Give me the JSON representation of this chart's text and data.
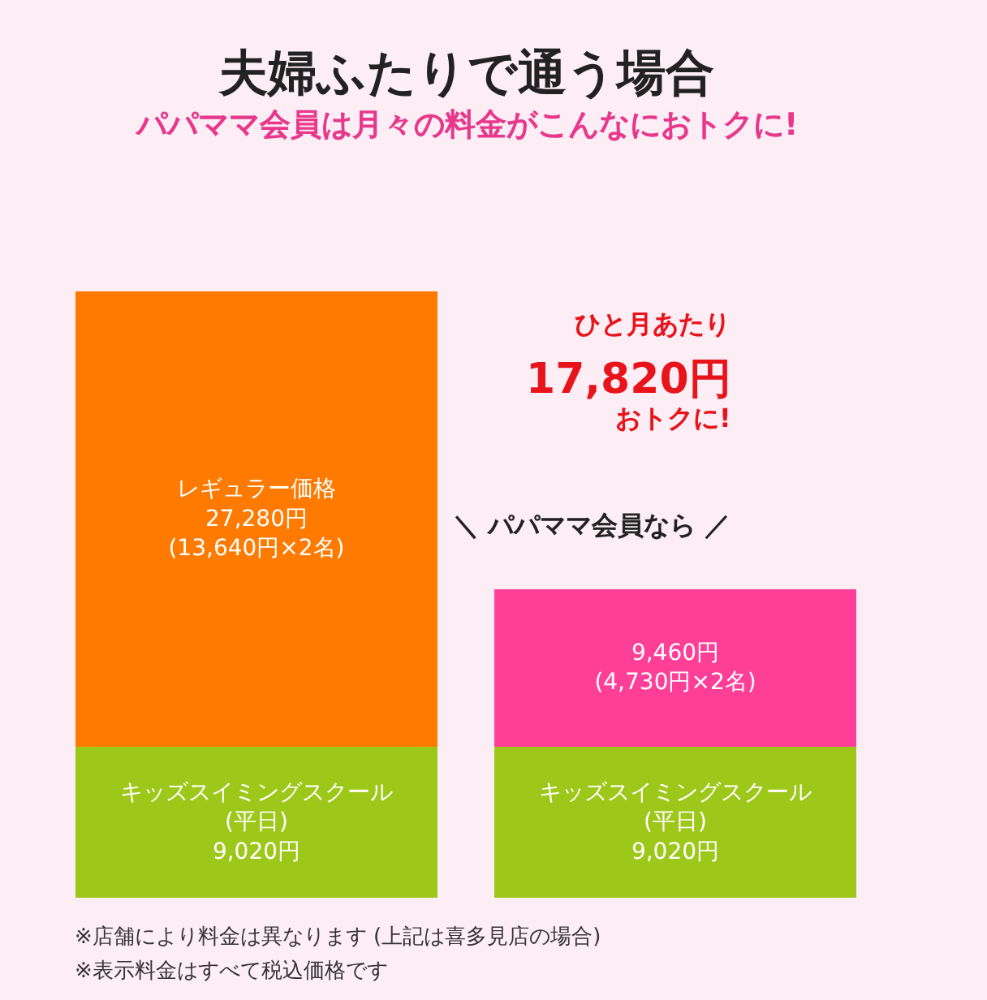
{
  "chart_data": {
    "type": "bar",
    "stacked": true,
    "title": "夫婦ふたりで通う場合",
    "subtitle": "パパママ会員は月々の料金がこんなにおトクに!",
    "categories": [
      null,
      null
    ],
    "series": [
      {
        "color": "#9dc81a",
        "values": [
          9020,
          9020
        ],
        "value_labels": [
          "キッズスイミングスクール\n(平日)\n9,020円",
          "キッズスイミングスクール\n(平日)\n9,020円"
        ]
      },
      {
        "colors": [
          "#ff7a00",
          "#ff3f97"
        ],
        "values": [
          27280,
          9460
        ],
        "value_labels": [
          "レギュラー価格\n27,280円\n(13,640円×2名)",
          "9,460円\n(4,730円×2名)"
        ]
      }
    ],
    "annotations": [
      "ひと月あたり",
      "17,820円",
      "おトクに!",
      "＼ パパママ会員なら ／",
      "※店舗により料金は異なります (上記は喜多見店の場合)",
      "※表示料金はすべて税込価格です"
    ],
    "grid": false
  }
}
